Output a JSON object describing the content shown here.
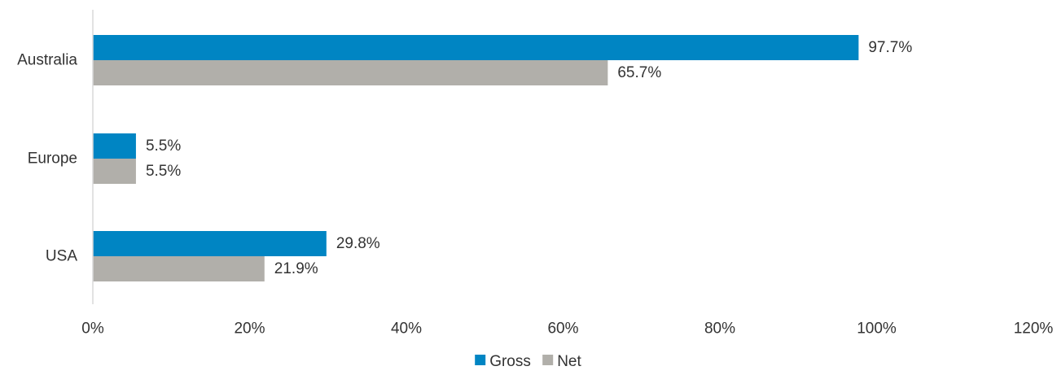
{
  "chart_data": {
    "type": "bar",
    "orientation": "horizontal",
    "categories": [
      "Australia",
      "Europe",
      "USA"
    ],
    "series": [
      {
        "name": "Gross",
        "values": [
          97.7,
          5.5,
          29.8
        ],
        "labels": [
          "97.7%",
          "5.5%",
          "29.8%"
        ],
        "color": "#0085C3"
      },
      {
        "name": "Net",
        "values": [
          65.7,
          5.5,
          21.9
        ],
        "labels": [
          "65.7%",
          "5.5%",
          "21.9%"
        ],
        "color": "#B1AFAA"
      }
    ],
    "xlim": [
      0,
      120
    ],
    "x_ticks": [
      0,
      20,
      40,
      60,
      80,
      100,
      120
    ],
    "x_tick_labels": [
      "0%",
      "20%",
      "40%",
      "60%",
      "80%",
      "100%",
      "120%"
    ],
    "title": "",
    "xlabel": "",
    "ylabel": "",
    "grid": false,
    "legend_position": "bottom"
  }
}
